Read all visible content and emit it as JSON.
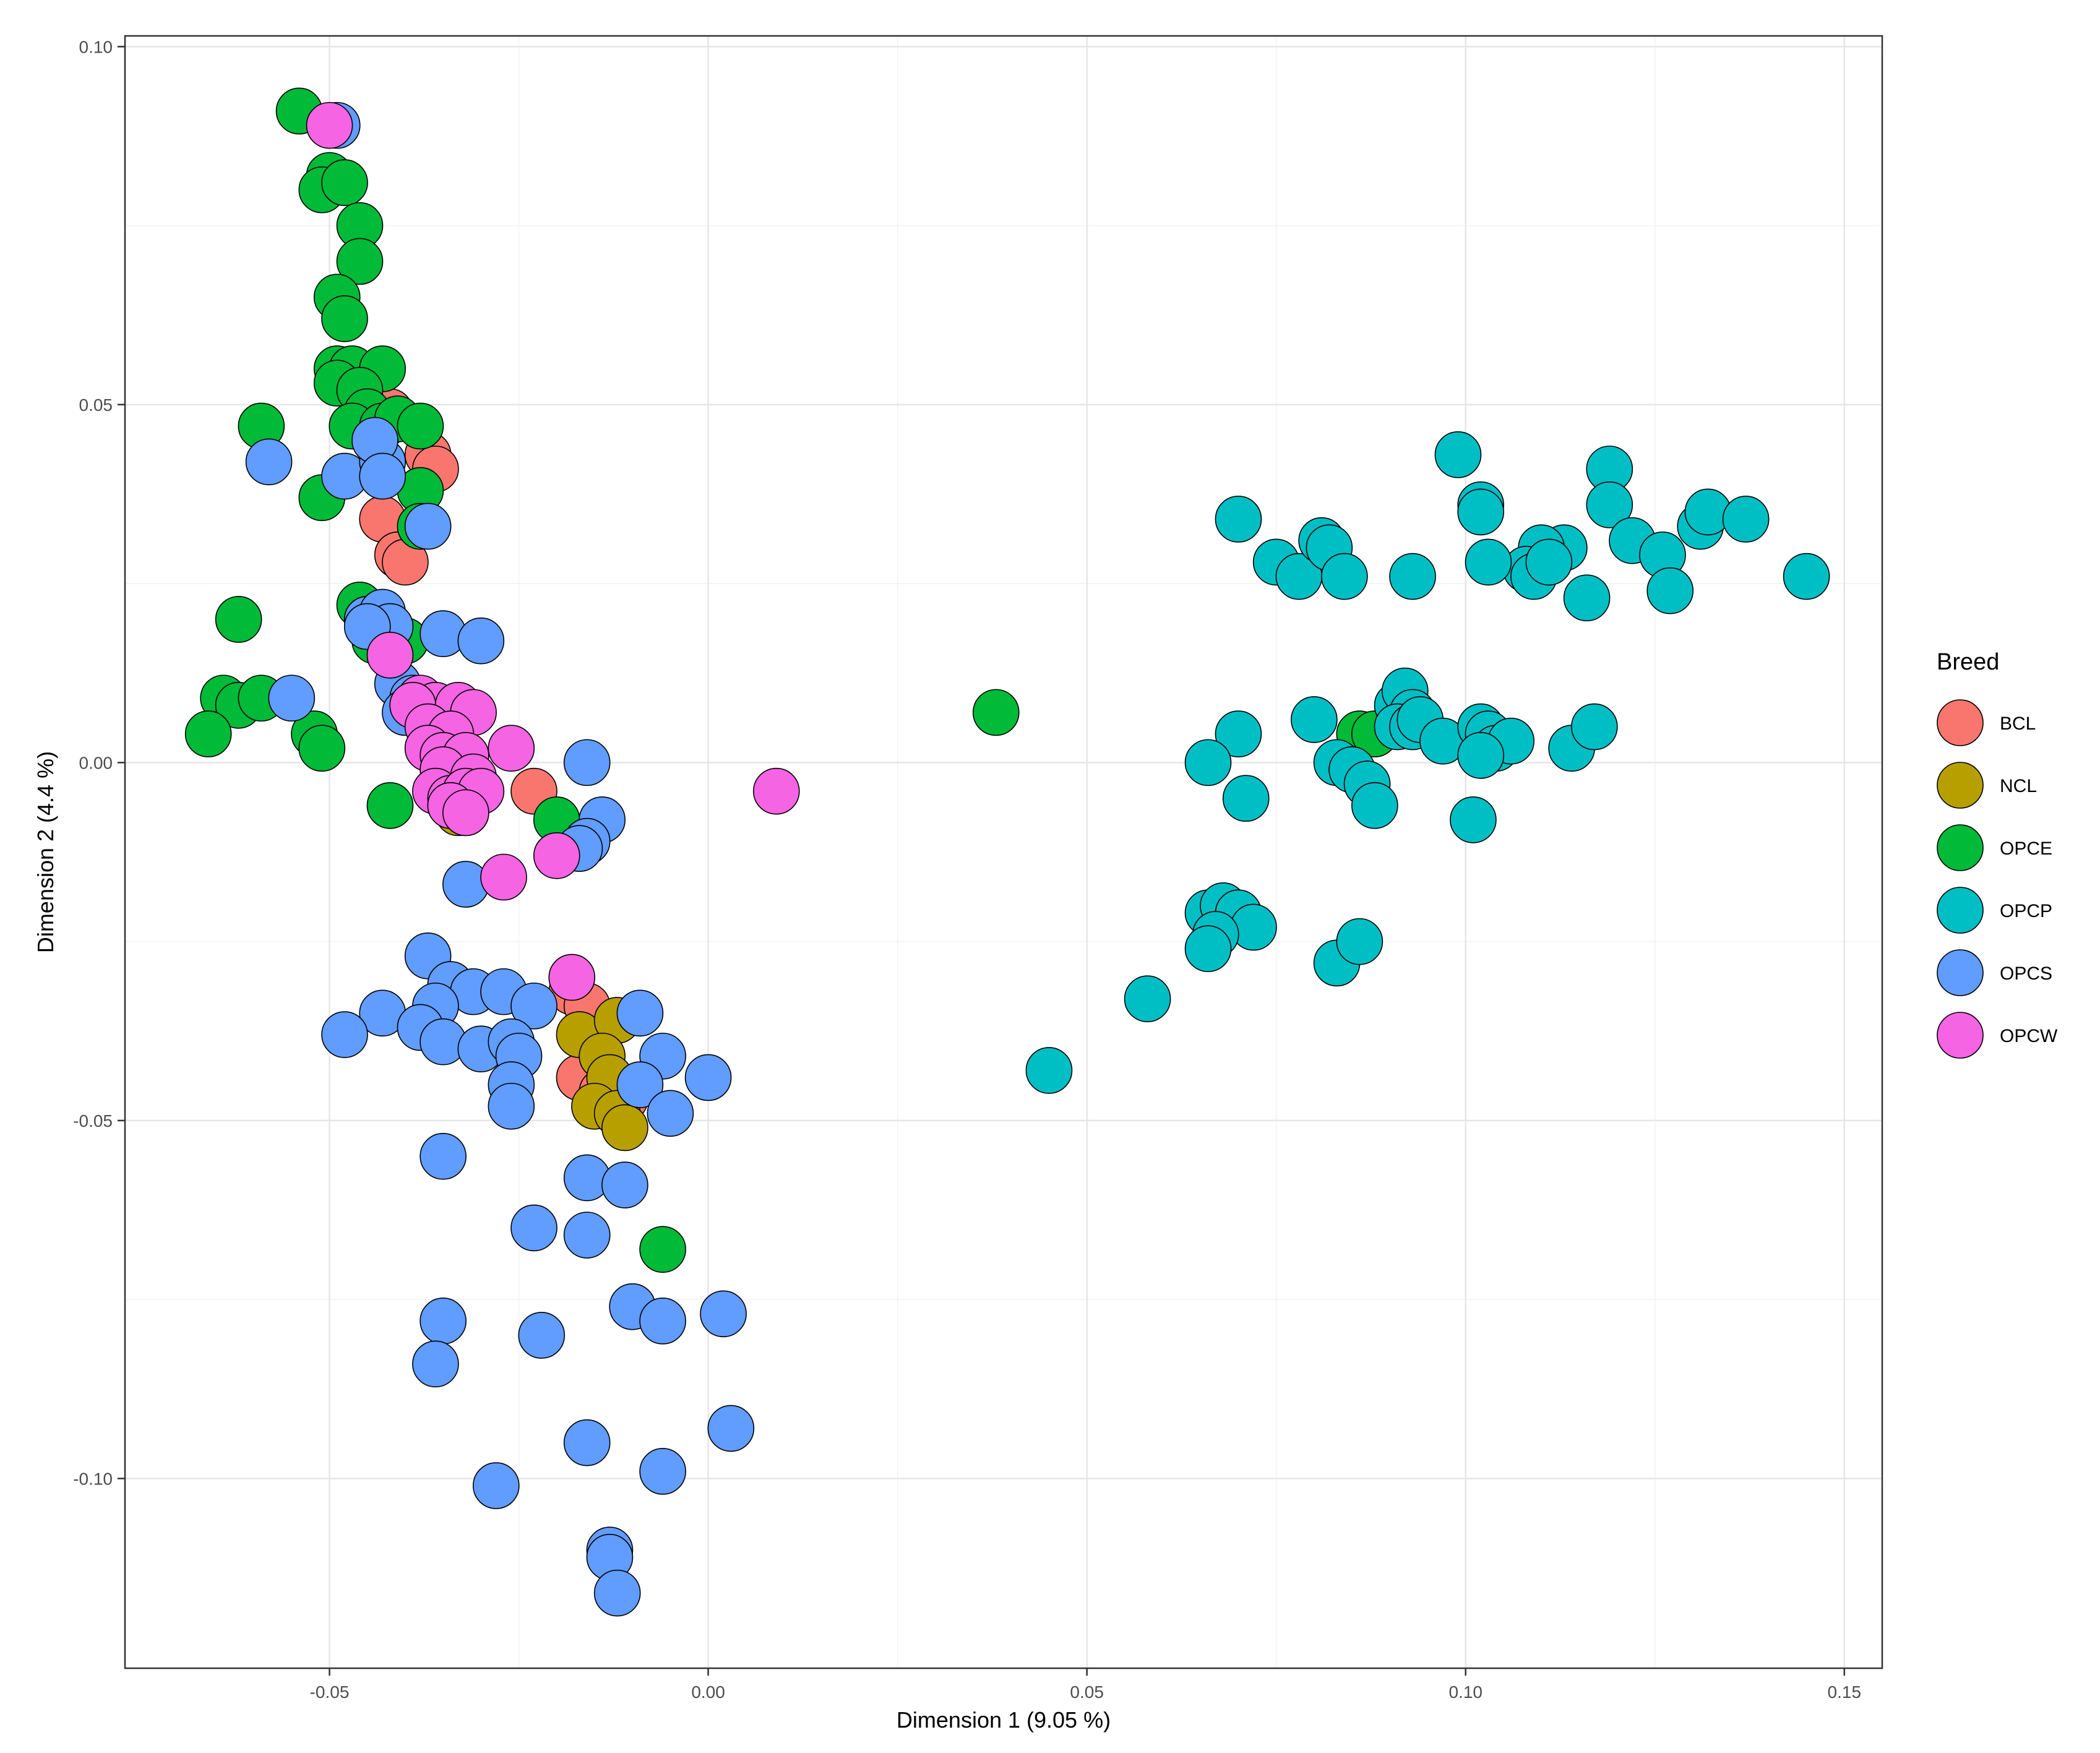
{
  "chart_data": {
    "type": "scatter",
    "title": "",
    "xlabel": "Dimension 1 (9.05 %)",
    "ylabel": "Dimension 2 (4.4 %)",
    "xlim": [
      -0.077,
      0.155
    ],
    "ylim": [
      -0.1265,
      0.1015
    ],
    "x_ticks": [
      -0.05,
      0.0,
      0.05,
      0.1,
      0.15
    ],
    "x_tick_labels": [
      "-0.05",
      "0.00",
      "0.05",
      "0.10",
      "0.15"
    ],
    "y_ticks": [
      -0.1,
      -0.05,
      0.0,
      0.05,
      0.1
    ],
    "y_tick_labels": [
      "-0.10",
      "-0.05",
      "0.00",
      "0.05",
      "0.10"
    ],
    "grid": true,
    "legend": {
      "title": "Breed",
      "position": "right"
    },
    "series": [
      {
        "name": "BCL",
        "color": "#F8766D",
        "points": [
          [
            -0.042,
            0.049
          ],
          [
            -0.037,
            0.043
          ],
          [
            -0.036,
            0.041
          ],
          [
            -0.043,
            0.034
          ],
          [
            -0.041,
            0.029
          ],
          [
            -0.04,
            0.028
          ],
          [
            -0.023,
            -0.004
          ],
          [
            -0.018,
            -0.032
          ],
          [
            -0.016,
            -0.034
          ],
          [
            -0.017,
            -0.044
          ],
          [
            -0.014,
            -0.046
          ],
          [
            -0.011,
            -0.047
          ]
        ]
      },
      {
        "name": "NCL",
        "color": "#B79F00",
        "points": [
          [
            -0.017,
            -0.038
          ],
          [
            -0.012,
            -0.036
          ],
          [
            -0.014,
            -0.041
          ],
          [
            -0.013,
            -0.044
          ],
          [
            -0.015,
            -0.048
          ],
          [
            -0.012,
            -0.049
          ],
          [
            -0.011,
            -0.051
          ],
          [
            -0.033,
            -0.007
          ]
        ]
      },
      {
        "name": "OPCE",
        "color": "#00BA38",
        "points": [
          [
            -0.054,
            0.091
          ],
          [
            -0.05,
            0.082
          ],
          [
            -0.051,
            0.08
          ],
          [
            -0.048,
            0.081
          ],
          [
            -0.046,
            0.075
          ],
          [
            -0.046,
            0.07
          ],
          [
            -0.049,
            0.065
          ],
          [
            -0.048,
            0.062
          ],
          [
            -0.049,
            0.055
          ],
          [
            -0.047,
            0.055
          ],
          [
            -0.043,
            0.055
          ],
          [
            -0.049,
            0.053
          ],
          [
            -0.046,
            0.052
          ],
          [
            -0.045,
            0.049
          ],
          [
            -0.047,
            0.047
          ],
          [
            -0.043,
            0.047
          ],
          [
            -0.041,
            0.048
          ],
          [
            -0.038,
            0.047
          ],
          [
            -0.059,
            0.047
          ],
          [
            -0.051,
            0.037
          ],
          [
            -0.038,
            0.038
          ],
          [
            -0.038,
            0.033
          ],
          [
            -0.046,
            0.022
          ],
          [
            -0.045,
            0.02
          ],
          [
            -0.044,
            0.017
          ],
          [
            -0.04,
            0.017
          ],
          [
            -0.062,
            0.02
          ],
          [
            -0.064,
            0.009
          ],
          [
            -0.062,
            0.008
          ],
          [
            -0.059,
            0.009
          ],
          [
            -0.066,
            0.004
          ],
          [
            -0.052,
            0.004
          ],
          [
            -0.051,
            0.002
          ],
          [
            -0.042,
            -0.006
          ],
          [
            -0.032,
            -0.007
          ],
          [
            -0.02,
            -0.008
          ],
          [
            -0.006,
            -0.068
          ],
          [
            0.038,
            0.007
          ],
          [
            0.086,
            0.004
          ],
          [
            0.088,
            0.004
          ]
        ]
      },
      {
        "name": "OPCP",
        "color": "#00BFC4",
        "points": [
          [
            0.099,
            0.043
          ],
          [
            0.102,
            0.036
          ],
          [
            0.102,
            0.035
          ],
          [
            0.119,
            0.041
          ],
          [
            0.119,
            0.036
          ],
          [
            0.122,
            0.031
          ],
          [
            0.126,
            0.029
          ],
          [
            0.131,
            0.033
          ],
          [
            0.132,
            0.035
          ],
          [
            0.137,
            0.034
          ],
          [
            0.145,
            0.026
          ],
          [
            0.113,
            0.03
          ],
          [
            0.11,
            0.03
          ],
          [
            0.108,
            0.027
          ],
          [
            0.109,
            0.026
          ],
          [
            0.111,
            0.028
          ],
          [
            0.103,
            0.028
          ],
          [
            0.116,
            0.023
          ],
          [
            0.127,
            0.024
          ],
          [
            0.07,
            0.034
          ],
          [
            0.075,
            0.028
          ],
          [
            0.078,
            0.026
          ],
          [
            0.081,
            0.031
          ],
          [
            0.082,
            0.03
          ],
          [
            0.084,
            0.026
          ],
          [
            0.093,
            0.026
          ],
          [
            0.08,
            0.006
          ],
          [
            0.07,
            0.004
          ],
          [
            0.066,
            0.0
          ],
          [
            0.071,
            -0.005
          ],
          [
            0.083,
            0.0
          ],
          [
            0.085,
            -0.001
          ],
          [
            0.087,
            -0.003
          ],
          [
            0.088,
            -0.006
          ],
          [
            0.091,
            0.008
          ],
          [
            0.092,
            0.01
          ],
          [
            0.093,
            0.007
          ],
          [
            0.091,
            0.005
          ],
          [
            0.093,
            0.005
          ],
          [
            0.094,
            0.006
          ],
          [
            0.097,
            0.003
          ],
          [
            0.102,
            0.005
          ],
          [
            0.103,
            0.004
          ],
          [
            0.104,
            0.002
          ],
          [
            0.106,
            0.003
          ],
          [
            0.102,
            0.001
          ],
          [
            0.114,
            0.002
          ],
          [
            0.117,
            0.005
          ],
          [
            0.101,
            -0.008
          ],
          [
            0.066,
            -0.021
          ],
          [
            0.068,
            -0.02
          ],
          [
            0.07,
            -0.021
          ],
          [
            0.072,
            -0.023
          ],
          [
            0.067,
            -0.024
          ],
          [
            0.066,
            -0.026
          ],
          [
            0.083,
            -0.028
          ],
          [
            0.086,
            -0.025
          ],
          [
            0.058,
            -0.033
          ],
          [
            0.045,
            -0.043
          ]
        ]
      },
      {
        "name": "OPCS",
        "color": "#619CFF",
        "points": [
          [
            -0.049,
            0.089
          ],
          [
            -0.058,
            0.042
          ],
          [
            -0.048,
            0.04
          ],
          [
            -0.043,
            0.042
          ],
          [
            -0.044,
            0.045
          ],
          [
            -0.043,
            0.04
          ],
          [
            -0.037,
            0.033
          ],
          [
            -0.045,
            0.02
          ],
          [
            -0.043,
            0.021
          ],
          [
            -0.042,
            0.019
          ],
          [
            -0.045,
            0.019
          ],
          [
            -0.035,
            0.018
          ],
          [
            -0.03,
            0.017
          ],
          [
            -0.041,
            0.011
          ],
          [
            -0.039,
            0.009
          ],
          [
            -0.04,
            0.007
          ],
          [
            -0.055,
            0.009
          ],
          [
            -0.016,
            0.0
          ],
          [
            -0.014,
            -0.008
          ],
          [
            -0.016,
            -0.011
          ],
          [
            -0.017,
            -0.012
          ],
          [
            -0.032,
            -0.017
          ],
          [
            -0.037,
            -0.027
          ],
          [
            -0.034,
            -0.031
          ],
          [
            -0.031,
            -0.032
          ],
          [
            -0.027,
            -0.032
          ],
          [
            -0.023,
            -0.034
          ],
          [
            -0.036,
            -0.034
          ],
          [
            -0.043,
            -0.035
          ],
          [
            -0.048,
            -0.038
          ],
          [
            -0.038,
            -0.037
          ],
          [
            -0.035,
            -0.039
          ],
          [
            -0.03,
            -0.04
          ],
          [
            -0.026,
            -0.039
          ],
          [
            -0.025,
            -0.041
          ],
          [
            -0.026,
            -0.045
          ],
          [
            -0.026,
            -0.048
          ],
          [
            -0.009,
            -0.035
          ],
          [
            -0.006,
            -0.041
          ],
          [
            -0.009,
            -0.045
          ],
          [
            0.0,
            -0.044
          ],
          [
            -0.005,
            -0.049
          ],
          [
            -0.035,
            -0.055
          ],
          [
            -0.016,
            -0.058
          ],
          [
            -0.011,
            -0.059
          ],
          [
            -0.023,
            -0.065
          ],
          [
            -0.016,
            -0.066
          ],
          [
            -0.035,
            -0.078
          ],
          [
            -0.036,
            -0.084
          ],
          [
            -0.022,
            -0.08
          ],
          [
            -0.01,
            -0.076
          ],
          [
            -0.006,
            -0.078
          ],
          [
            0.002,
            -0.077
          ],
          [
            0.003,
            -0.093
          ],
          [
            -0.016,
            -0.095
          ],
          [
            -0.006,
            -0.099
          ],
          [
            -0.028,
            -0.101
          ],
          [
            -0.013,
            -0.11
          ],
          [
            -0.013,
            -0.111
          ],
          [
            -0.012,
            -0.116
          ]
        ]
      },
      {
        "name": "OPCW",
        "color": "#F564E3",
        "points": [
          [
            -0.05,
            0.089
          ],
          [
            -0.042,
            0.015
          ],
          [
            -0.038,
            0.009
          ],
          [
            -0.036,
            0.008
          ],
          [
            -0.039,
            0.008
          ],
          [
            -0.033,
            0.008
          ],
          [
            -0.031,
            0.007
          ],
          [
            -0.037,
            0.005
          ],
          [
            -0.034,
            0.004
          ],
          [
            -0.037,
            0.002
          ],
          [
            -0.035,
            0.001
          ],
          [
            -0.032,
            0.001
          ],
          [
            -0.035,
            -0.001
          ],
          [
            -0.031,
            -0.002
          ],
          [
            -0.036,
            -0.004
          ],
          [
            -0.034,
            -0.005
          ],
          [
            -0.032,
            -0.004
          ],
          [
            -0.03,
            -0.004
          ],
          [
            -0.034,
            -0.006
          ],
          [
            -0.032,
            -0.007
          ],
          [
            -0.026,
            0.002
          ],
          [
            -0.02,
            -0.013
          ],
          [
            -0.027,
            -0.016
          ],
          [
            -0.018,
            -0.03
          ],
          [
            0.009,
            -0.004
          ]
        ]
      }
    ]
  }
}
